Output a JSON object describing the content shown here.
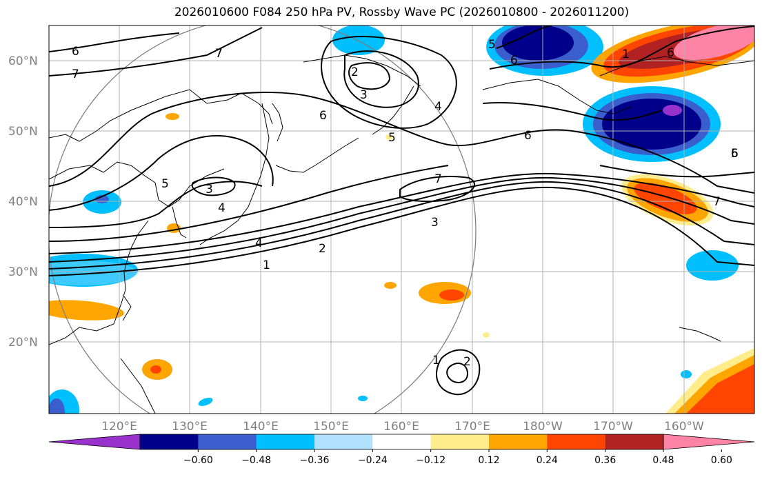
{
  "title": "2026010600 F084 250 hPa PV, Rossby Wave PC (2026010800 - 2026011200)",
  "lat_ticks": [
    "60°N",
    "50°N",
    "40°N",
    "30°N",
    "20°N"
  ],
  "lon_ticks": [
    "120°E",
    "130°E",
    "140°E",
    "150°E",
    "160°E",
    "170°E",
    "180°W",
    "170°W",
    "160°W"
  ],
  "colorbar": {
    "colors": [
      "#9932cc",
      "#00008b",
      "#3a5fcd",
      "#00bfff",
      "#b0e2ff",
      "#ffffff",
      "#ffec8b",
      "#ffa500",
      "#ff4500",
      "#b22222",
      "#ff83a5"
    ],
    "labels": [
      "−0.60",
      "−0.48",
      "−0.36",
      "−0.24",
      "−0.12",
      "0.12",
      "0.24",
      "0.36",
      "0.48",
      "0.60"
    ]
  },
  "contour_labels": [
    "6",
    "7",
    "7",
    "2",
    "3",
    "4",
    "5",
    "5",
    "6",
    "5",
    "6",
    "1",
    "6",
    "6",
    "5",
    "3",
    "4",
    "4",
    "3",
    "2",
    "1",
    "7",
    "7",
    "6",
    "1",
    "2"
  ]
}
